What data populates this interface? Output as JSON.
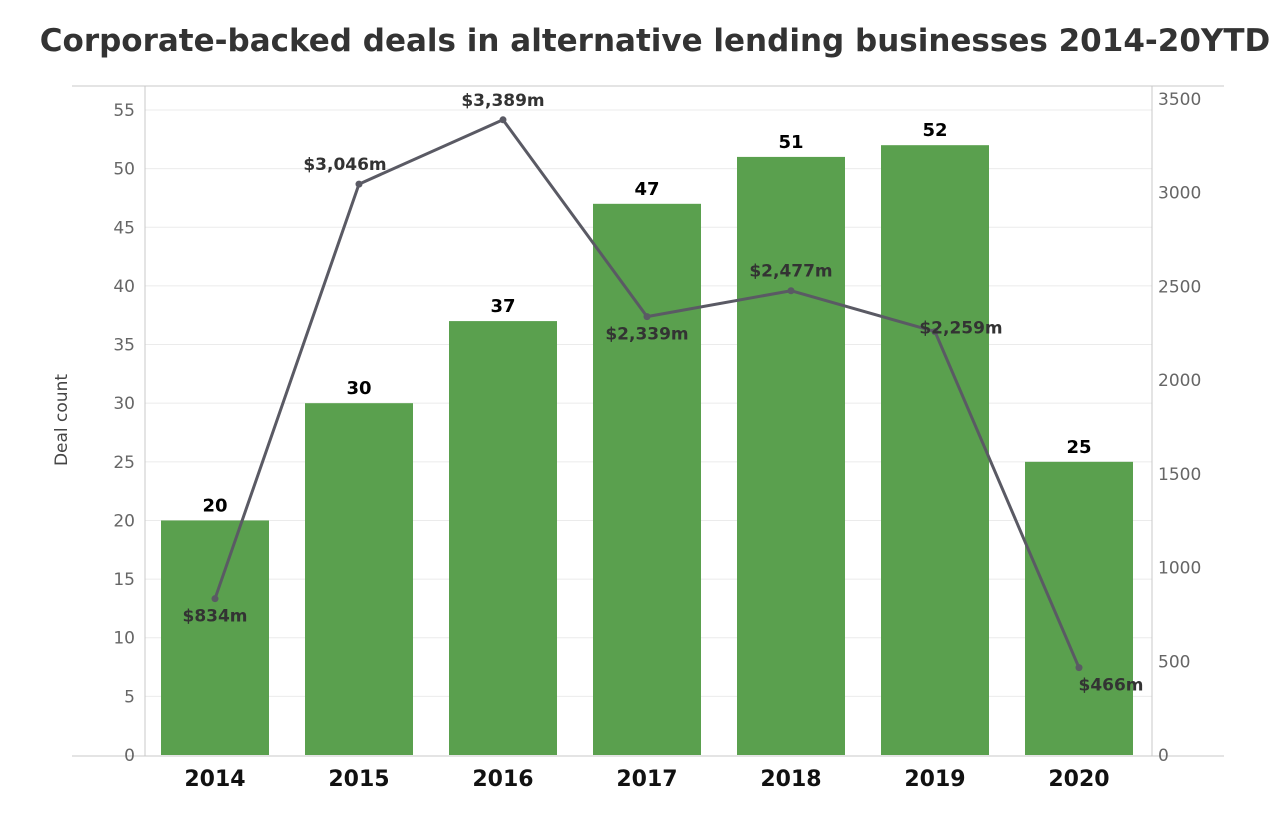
{
  "chart_data": {
    "type": "bar",
    "title": "Corporate-backed deals in alternative lending businesses 2014-20YTD",
    "ylabel": "Deal count",
    "ylabel_right": "",
    "categories": [
      "2014",
      "2015",
      "2016",
      "2017",
      "2018",
      "2019",
      "2020"
    ],
    "series": [
      {
        "type": "bar",
        "values": [
          20,
          30,
          37,
          47,
          51,
          52,
          25
        ],
        "axis": "left"
      },
      {
        "type": "line",
        "values": [
          834,
          3046,
          3389,
          2339,
          2477,
          2259,
          466
        ],
        "labels": [
          "$834m",
          "$3,046m",
          "$3,389m",
          "$2,339m",
          "$2,477m",
          "$2,259m",
          "$466m"
        ],
        "axis": "right"
      }
    ],
    "ylim": [
      0,
      56
    ],
    "ylim_right": [
      0,
      3580
    ],
    "yticks": [
      0,
      5,
      10,
      15,
      20,
      25,
      30,
      35,
      40,
      45,
      50,
      55
    ],
    "yticks_right": [
      0,
      500,
      1000,
      1500,
      2000,
      2500,
      3000,
      3500
    ],
    "grid": true,
    "colors": {
      "bar": "#5aa04e",
      "line": "#5a5a64"
    }
  }
}
